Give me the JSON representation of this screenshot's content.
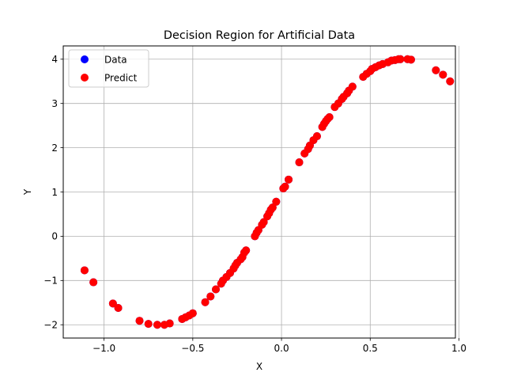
{
  "chart_data": {
    "type": "scatter",
    "title": "Decision Region for Artificial Data",
    "xlabel": "X",
    "ylabel": "Y",
    "xlim": [
      -1.23,
      0.98
    ],
    "ylim": [
      -2.3,
      4.3
    ],
    "xticks": [
      -1.0,
      -0.5,
      0.0,
      0.5,
      1.0
    ],
    "xtick_labels": [
      "−1.0",
      "−0.5",
      "0.0",
      "0.5",
      "1.0"
    ],
    "yticks": [
      -2,
      -1,
      0,
      1,
      2,
      3,
      4
    ],
    "ytick_labels": [
      "−2",
      "−1",
      "0",
      "1",
      "2",
      "3",
      "4"
    ],
    "grid": true,
    "legend_position": "top-left",
    "series": [
      {
        "name": "Data",
        "color": "#0000ff",
        "points": [
          [
            -1.11,
            -0.77
          ],
          [
            -1.06,
            -1.04
          ],
          [
            -0.95,
            -1.52
          ],
          [
            -0.92,
            -1.62
          ],
          [
            -0.8,
            -1.91
          ],
          [
            -0.75,
            -1.98
          ],
          [
            -0.7,
            -2.0
          ],
          [
            -0.66,
            -2.0
          ],
          [
            -0.63,
            -1.97
          ],
          [
            -0.56,
            -1.87
          ],
          [
            -0.54,
            -1.83
          ],
          [
            -0.52,
            -1.79
          ],
          [
            -0.5,
            -1.74
          ],
          [
            -0.43,
            -1.49
          ],
          [
            -0.4,
            -1.36
          ],
          [
            -0.37,
            -1.2
          ],
          [
            -0.34,
            -1.07
          ],
          [
            -0.33,
            -1.0
          ],
          [
            -0.31,
            -0.92
          ],
          [
            -0.29,
            -0.83
          ],
          [
            -0.27,
            -0.73
          ],
          [
            -0.26,
            -0.66
          ],
          [
            -0.25,
            -0.6
          ],
          [
            -0.23,
            -0.52
          ],
          [
            -0.22,
            -0.47
          ],
          [
            -0.21,
            -0.37
          ],
          [
            -0.2,
            -0.32
          ],
          [
            -0.15,
            0.0
          ],
          [
            -0.14,
            0.08
          ],
          [
            -0.13,
            0.14
          ],
          [
            -0.11,
            0.26
          ],
          [
            -0.1,
            0.32
          ],
          [
            -0.08,
            0.45
          ],
          [
            -0.07,
            0.52
          ],
          [
            -0.06,
            0.6
          ],
          [
            -0.05,
            0.65
          ],
          [
            -0.03,
            0.78
          ],
          [
            0.01,
            1.08
          ],
          [
            0.02,
            1.12
          ],
          [
            0.04,
            1.28
          ],
          [
            0.1,
            1.67
          ],
          [
            0.13,
            1.87
          ],
          [
            0.15,
            1.97
          ],
          [
            0.16,
            2.05
          ],
          [
            0.18,
            2.17
          ],
          [
            0.2,
            2.26
          ],
          [
            0.23,
            2.47
          ],
          [
            0.24,
            2.54
          ],
          [
            0.25,
            2.6
          ],
          [
            0.26,
            2.65
          ],
          [
            0.27,
            2.69
          ],
          [
            0.3,
            2.92
          ],
          [
            0.32,
            3.0
          ],
          [
            0.34,
            3.1
          ],
          [
            0.35,
            3.15
          ],
          [
            0.37,
            3.23
          ],
          [
            0.38,
            3.29
          ],
          [
            0.4,
            3.38
          ],
          [
            0.46,
            3.6
          ],
          [
            0.48,
            3.67
          ],
          [
            0.5,
            3.73
          ],
          [
            0.51,
            3.78
          ],
          [
            0.53,
            3.82
          ],
          [
            0.55,
            3.86
          ],
          [
            0.57,
            3.89
          ],
          [
            0.6,
            3.93
          ],
          [
            0.62,
            3.97
          ],
          [
            0.64,
            3.98
          ],
          [
            0.66,
            4.0
          ],
          [
            0.67,
            4.0
          ],
          [
            0.71,
            4.0
          ],
          [
            0.73,
            3.99
          ],
          [
            0.87,
            3.75
          ],
          [
            0.91,
            3.65
          ],
          [
            0.95,
            3.5
          ]
        ]
      },
      {
        "name": "Predict",
        "color": "#ff0000",
        "points": [
          [
            -1.11,
            -0.77
          ],
          [
            -1.06,
            -1.04
          ],
          [
            -0.95,
            -1.52
          ],
          [
            -0.92,
            -1.62
          ],
          [
            -0.8,
            -1.91
          ],
          [
            -0.75,
            -1.98
          ],
          [
            -0.7,
            -2.0
          ],
          [
            -0.66,
            -2.0
          ],
          [
            -0.63,
            -1.97
          ],
          [
            -0.56,
            -1.87
          ],
          [
            -0.54,
            -1.83
          ],
          [
            -0.52,
            -1.79
          ],
          [
            -0.5,
            -1.74
          ],
          [
            -0.43,
            -1.49
          ],
          [
            -0.4,
            -1.36
          ],
          [
            -0.37,
            -1.2
          ],
          [
            -0.34,
            -1.07
          ],
          [
            -0.33,
            -1.0
          ],
          [
            -0.31,
            -0.92
          ],
          [
            -0.29,
            -0.83
          ],
          [
            -0.27,
            -0.73
          ],
          [
            -0.26,
            -0.66
          ],
          [
            -0.25,
            -0.6
          ],
          [
            -0.23,
            -0.52
          ],
          [
            -0.22,
            -0.47
          ],
          [
            -0.21,
            -0.37
          ],
          [
            -0.2,
            -0.32
          ],
          [
            -0.15,
            0.0
          ],
          [
            -0.14,
            0.08
          ],
          [
            -0.13,
            0.14
          ],
          [
            -0.11,
            0.26
          ],
          [
            -0.1,
            0.32
          ],
          [
            -0.08,
            0.45
          ],
          [
            -0.07,
            0.52
          ],
          [
            -0.06,
            0.6
          ],
          [
            -0.05,
            0.65
          ],
          [
            -0.03,
            0.78
          ],
          [
            0.01,
            1.08
          ],
          [
            0.02,
            1.12
          ],
          [
            0.04,
            1.28
          ],
          [
            0.1,
            1.67
          ],
          [
            0.13,
            1.87
          ],
          [
            0.15,
            1.97
          ],
          [
            0.16,
            2.05
          ],
          [
            0.18,
            2.17
          ],
          [
            0.2,
            2.26
          ],
          [
            0.23,
            2.47
          ],
          [
            0.24,
            2.54
          ],
          [
            0.25,
            2.6
          ],
          [
            0.26,
            2.65
          ],
          [
            0.27,
            2.69
          ],
          [
            0.3,
            2.92
          ],
          [
            0.32,
            3.0
          ],
          [
            0.34,
            3.1
          ],
          [
            0.35,
            3.15
          ],
          [
            0.37,
            3.23
          ],
          [
            0.38,
            3.29
          ],
          [
            0.4,
            3.38
          ],
          [
            0.46,
            3.6
          ],
          [
            0.48,
            3.67
          ],
          [
            0.5,
            3.73
          ],
          [
            0.51,
            3.78
          ],
          [
            0.53,
            3.82
          ],
          [
            0.55,
            3.86
          ],
          [
            0.57,
            3.89
          ],
          [
            0.6,
            3.93
          ],
          [
            0.62,
            3.97
          ],
          [
            0.64,
            3.98
          ],
          [
            0.66,
            4.0
          ],
          [
            0.67,
            4.0
          ],
          [
            0.71,
            4.0
          ],
          [
            0.73,
            3.99
          ],
          [
            0.87,
            3.75
          ],
          [
            0.91,
            3.65
          ],
          [
            0.95,
            3.5
          ]
        ]
      }
    ]
  }
}
